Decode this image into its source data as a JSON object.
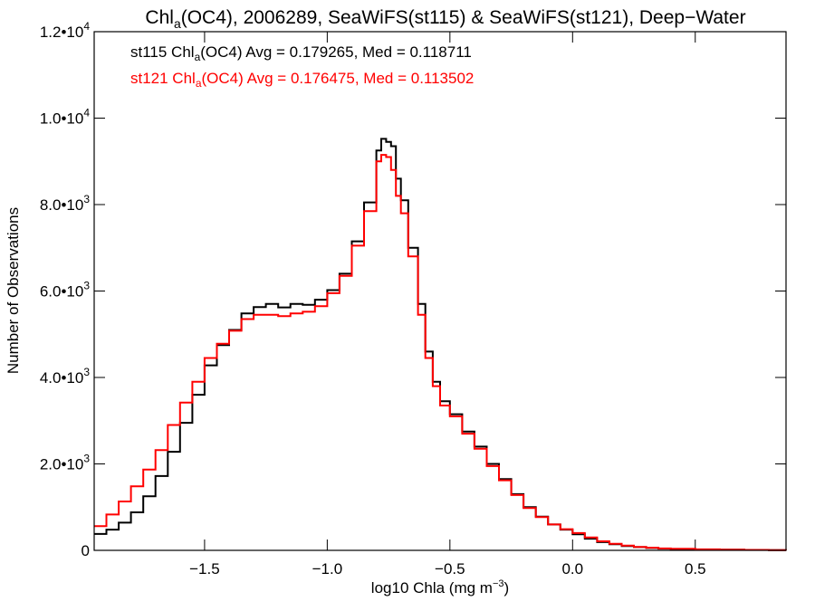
{
  "chart_data": {
    "type": "line",
    "title": {
      "pre": "Chl",
      "sub": "a",
      "post": "(OC4), 2006289, SeaWiFS(st115) & SeaWiFS(st121), Deep−Water"
    },
    "xlabel": {
      "pre": "log10 Chla (mg m",
      "sup": "−3",
      "post": ")"
    },
    "ylabel": "Number of Observations",
    "xlim": [
      -1.95,
      0.87
    ],
    "ylim": [
      0,
      12000
    ],
    "x_ticks": [
      {
        "value": -1.5,
        "label": "−1.5"
      },
      {
        "value": -1.0,
        "label": "−1.0"
      },
      {
        "value": -0.5,
        "label": "−0.5"
      },
      {
        "value": 0.0,
        "label": "0.0"
      },
      {
        "value": 0.5,
        "label": "0.5"
      }
    ],
    "y_ticks": [
      {
        "value": 0,
        "mant": "0",
        "exp": ""
      },
      {
        "value": 2000,
        "mant": "2.0•10",
        "exp": "3"
      },
      {
        "value": 4000,
        "mant": "4.0•10",
        "exp": "3"
      },
      {
        "value": 6000,
        "mant": "6.0•10",
        "exp": "3"
      },
      {
        "value": 8000,
        "mant": "8.0•10",
        "exp": "3"
      },
      {
        "value": 10000,
        "mant": "1.0•10",
        "exp": "4"
      },
      {
        "value": 12000,
        "mant": "1.2•10",
        "exp": "4"
      }
    ],
    "grid": false,
    "legend_position": "top-left",
    "series": [
      {
        "color": "#000000",
        "legend": {
          "pre": "st115 Chl",
          "sub": "a",
          "post": "(OC4) Avg = 0.179265, Med = 0.118711"
        },
        "points": [
          [
            -1.95,
            380
          ],
          [
            -1.9,
            480
          ],
          [
            -1.85,
            640
          ],
          [
            -1.8,
            880
          ],
          [
            -1.75,
            1250
          ],
          [
            -1.7,
            1720
          ],
          [
            -1.65,
            2280
          ],
          [
            -1.6,
            2950
          ],
          [
            -1.55,
            3600
          ],
          [
            -1.5,
            4280
          ],
          [
            -1.45,
            4750
          ],
          [
            -1.4,
            5100
          ],
          [
            -1.35,
            5480
          ],
          [
            -1.3,
            5630
          ],
          [
            -1.25,
            5700
          ],
          [
            -1.2,
            5620
          ],
          [
            -1.15,
            5700
          ],
          [
            -1.1,
            5680
          ],
          [
            -1.05,
            5800
          ],
          [
            -1.0,
            6020
          ],
          [
            -0.95,
            6400
          ],
          [
            -0.9,
            7150
          ],
          [
            -0.85,
            8050
          ],
          [
            -0.8,
            9250
          ],
          [
            -0.78,
            9520
          ],
          [
            -0.76,
            9450
          ],
          [
            -0.74,
            9350
          ],
          [
            -0.72,
            8600
          ],
          [
            -0.7,
            8100
          ],
          [
            -0.67,
            7000
          ],
          [
            -0.63,
            5700
          ],
          [
            -0.6,
            4600
          ],
          [
            -0.57,
            3900
          ],
          [
            -0.54,
            3450
          ],
          [
            -0.5,
            3150
          ],
          [
            -0.45,
            2750
          ],
          [
            -0.4,
            2400
          ],
          [
            -0.35,
            2000
          ],
          [
            -0.3,
            1650
          ],
          [
            -0.25,
            1300
          ],
          [
            -0.2,
            1000
          ],
          [
            -0.15,
            780
          ],
          [
            -0.1,
            600
          ],
          [
            -0.05,
            480
          ],
          [
            0.0,
            370
          ],
          [
            0.05,
            270
          ],
          [
            0.1,
            190
          ],
          [
            0.15,
            140
          ],
          [
            0.2,
            100
          ],
          [
            0.25,
            75
          ],
          [
            0.3,
            55
          ],
          [
            0.35,
            40
          ],
          [
            0.4,
            30
          ],
          [
            0.5,
            20
          ],
          [
            0.6,
            15
          ],
          [
            0.7,
            10
          ],
          [
            0.8,
            5
          ],
          [
            0.87,
            5
          ]
        ]
      },
      {
        "color": "#ff0000",
        "legend": {
          "pre": "st121 Chl",
          "sub": "a",
          "post": "(OC4) Avg = 0.176475, Med = 0.113502"
        },
        "points": [
          [
            -1.95,
            560
          ],
          [
            -1.9,
            830
          ],
          [
            -1.85,
            1130
          ],
          [
            -1.8,
            1480
          ],
          [
            -1.75,
            1870
          ],
          [
            -1.7,
            2320
          ],
          [
            -1.65,
            2900
          ],
          [
            -1.6,
            3420
          ],
          [
            -1.55,
            3900
          ],
          [
            -1.5,
            4450
          ],
          [
            -1.45,
            4780
          ],
          [
            -1.4,
            5080
          ],
          [
            -1.35,
            5350
          ],
          [
            -1.3,
            5450
          ],
          [
            -1.25,
            5450
          ],
          [
            -1.2,
            5420
          ],
          [
            -1.15,
            5480
          ],
          [
            -1.1,
            5520
          ],
          [
            -1.05,
            5650
          ],
          [
            -1.0,
            5950
          ],
          [
            -0.95,
            6350
          ],
          [
            -0.9,
            7050
          ],
          [
            -0.85,
            7850
          ],
          [
            -0.8,
            9000
          ],
          [
            -0.78,
            9150
          ],
          [
            -0.76,
            9100
          ],
          [
            -0.74,
            8800
          ],
          [
            -0.72,
            8200
          ],
          [
            -0.7,
            7800
          ],
          [
            -0.67,
            6800
          ],
          [
            -0.63,
            5450
          ],
          [
            -0.6,
            4450
          ],
          [
            -0.57,
            3800
          ],
          [
            -0.54,
            3350
          ],
          [
            -0.5,
            3100
          ],
          [
            -0.45,
            2700
          ],
          [
            -0.4,
            2350
          ],
          [
            -0.35,
            1950
          ],
          [
            -0.3,
            1620
          ],
          [
            -0.25,
            1280
          ],
          [
            -0.2,
            980
          ],
          [
            -0.15,
            770
          ],
          [
            -0.1,
            600
          ],
          [
            -0.05,
            490
          ],
          [
            0.0,
            400
          ],
          [
            0.05,
            300
          ],
          [
            0.1,
            210
          ],
          [
            0.15,
            150
          ],
          [
            0.2,
            110
          ],
          [
            0.25,
            80
          ],
          [
            0.3,
            60
          ],
          [
            0.35,
            45
          ],
          [
            0.4,
            35
          ],
          [
            0.5,
            22
          ],
          [
            0.6,
            15
          ],
          [
            0.7,
            10
          ],
          [
            0.8,
            6
          ],
          [
            0.87,
            5
          ]
        ]
      }
    ]
  }
}
